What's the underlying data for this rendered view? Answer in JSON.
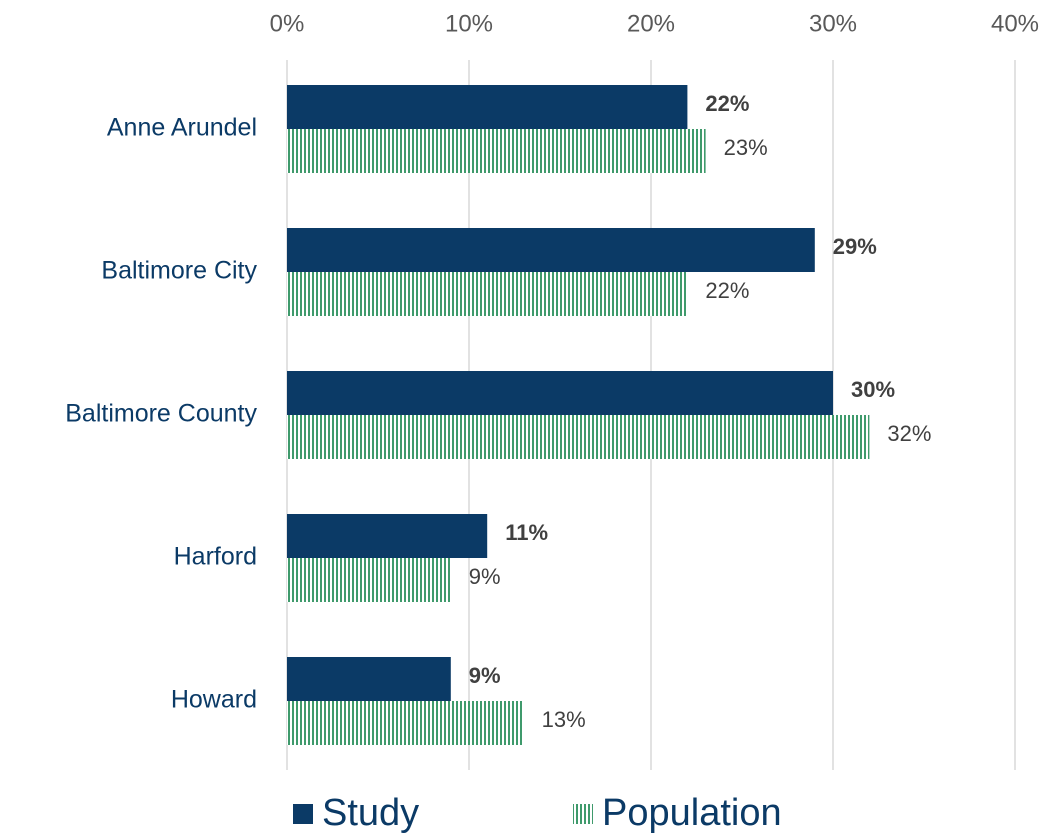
{
  "chart_data": {
    "type": "bar",
    "orientation": "horizontal",
    "categories": [
      "Anne Arundel",
      "Baltimore City",
      "Baltimore County",
      "Harford",
      "Howard"
    ],
    "series": [
      {
        "name": "Study",
        "color": "#0b3a66",
        "values": [
          22,
          29,
          30,
          11,
          9
        ],
        "value_labels": [
          "22%",
          "29%",
          "30%",
          "11%",
          "9%"
        ]
      },
      {
        "name": "Population",
        "color": "#3f9a6c",
        "pattern": "vertical-stripes",
        "values": [
          23,
          22,
          32,
          9,
          13
        ],
        "value_labels": [
          "23%",
          "22%",
          "32%",
          "9%",
          "13%"
        ]
      }
    ],
    "xlim": [
      0,
      40
    ],
    "xticks": [
      {
        "value": 0,
        "label": "0%"
      },
      {
        "value": 10,
        "label": "10%"
      },
      {
        "value": 20,
        "label": "20%"
      },
      {
        "value": 30,
        "label": "30%"
      },
      {
        "value": 40,
        "label": "40%"
      }
    ],
    "grid": true,
    "legend": "bottom"
  }
}
